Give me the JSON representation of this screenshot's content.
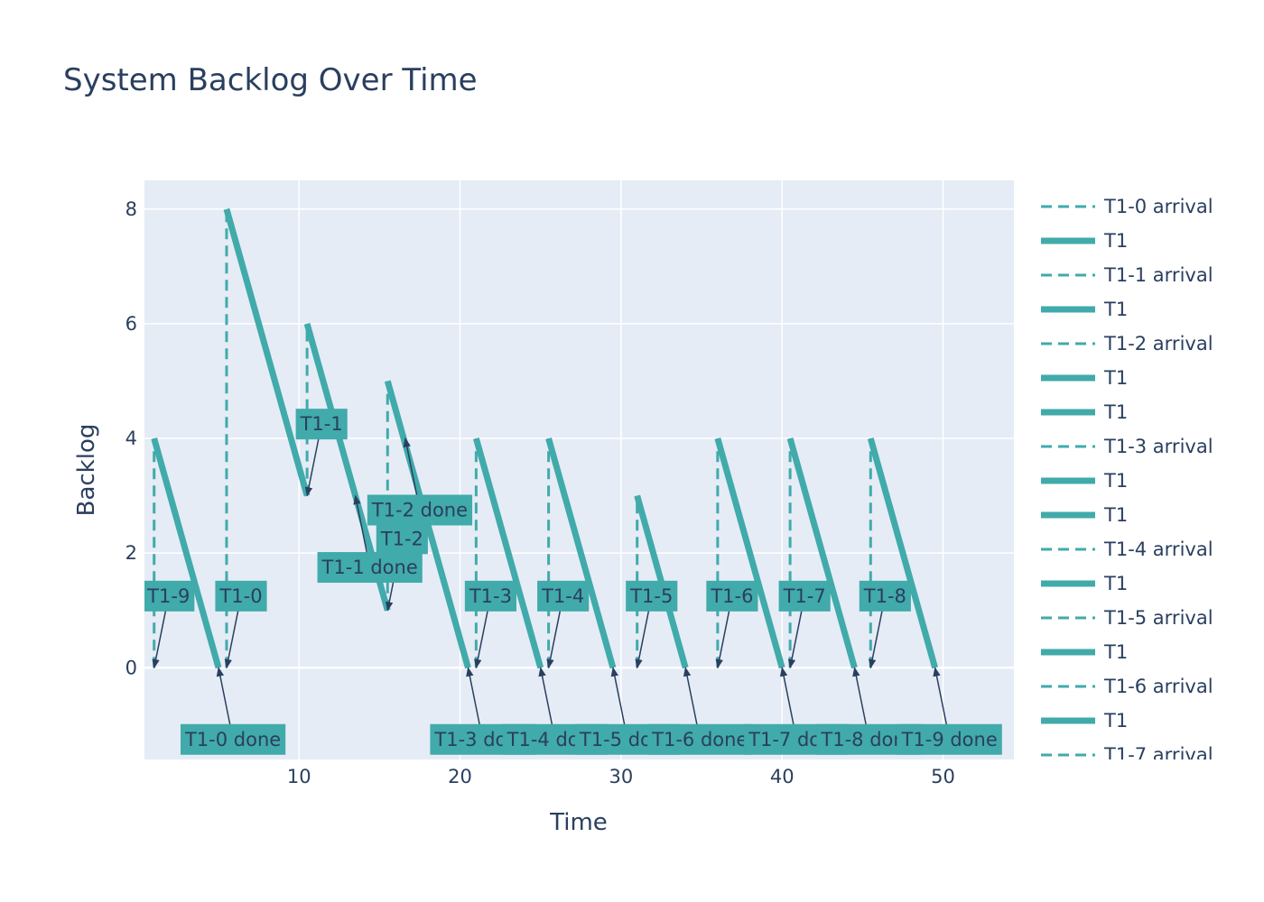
{
  "chart_data": {
    "type": "line",
    "title": "System Backlog Over Time",
    "xlabel": "Time",
    "ylabel": "Backlog",
    "xlim": [
      0.4,
      54.4
    ],
    "ylim": [
      -1.6,
      8.5
    ],
    "x_ticks": [
      10,
      20,
      30,
      40,
      50
    ],
    "y_ticks": [
      0,
      2,
      4,
      6,
      8
    ],
    "grid": true,
    "legend_position": "right",
    "colors": {
      "series": "#41aaaa",
      "plot_bg": "#e5ecf6",
      "grid": "#ffffff",
      "text": "#2a3f5f",
      "arrow": "#2a3f5f"
    },
    "series": [
      {
        "name": "T1-0 arrival",
        "style": "dash",
        "x": [
          5.5,
          5.5
        ],
        "y": [
          0,
          8
        ]
      },
      {
        "name": "T1",
        "style": "solid",
        "x": [
          5.5,
          10.5
        ],
        "y": [
          8,
          3
        ]
      },
      {
        "name": "T1-1 arrival",
        "style": "dash",
        "x": [
          10.5,
          10.5
        ],
        "y": [
          3,
          6
        ]
      },
      {
        "name": "T1",
        "style": "solid",
        "x": [
          10.5,
          15.5
        ],
        "y": [
          6,
          1
        ]
      },
      {
        "name": "T1-2 arrival",
        "style": "dash",
        "x": [
          15.5,
          15.5
        ],
        "y": [
          1,
          5
        ]
      },
      {
        "name": "T1",
        "style": "solid",
        "x": [
          15.5,
          20.5
        ],
        "y": [
          5,
          0
        ]
      },
      {
        "name": "T1",
        "style": "solid",
        "x": [
          1.0,
          5.0
        ],
        "y": [
          4,
          0
        ]
      },
      {
        "name": "T1-3 arrival",
        "style": "dash",
        "x": [
          21.0,
          21.0
        ],
        "y": [
          0,
          4
        ]
      },
      {
        "name": "T1",
        "style": "solid",
        "x": [
          21.0,
          25.0
        ],
        "y": [
          4,
          0
        ]
      },
      {
        "name": "T1",
        "style": "solid",
        "x": [
          25.5,
          29.5
        ],
        "y": [
          4,
          0
        ]
      },
      {
        "name": "T1-4 arrival",
        "style": "dash",
        "x": [
          25.5,
          25.5
        ],
        "y": [
          0,
          4
        ]
      },
      {
        "name": "T1",
        "style": "solid",
        "x": [
          31.0,
          34.0
        ],
        "y": [
          3,
          0
        ]
      },
      {
        "name": "T1-5 arrival",
        "style": "dash",
        "x": [
          31.0,
          31.0
        ],
        "y": [
          0,
          3
        ]
      },
      {
        "name": "T1",
        "style": "solid",
        "x": [
          36.0,
          40.0
        ],
        "y": [
          4,
          0
        ]
      },
      {
        "name": "T1-6 arrival",
        "style": "dash",
        "x": [
          36.0,
          36.0
        ],
        "y": [
          0,
          4
        ]
      },
      {
        "name": "T1",
        "style": "solid",
        "x": [
          40.5,
          44.5
        ],
        "y": [
          4,
          0
        ]
      },
      {
        "name": "T1-7 arrival",
        "style": "dash",
        "x": [
          40.5,
          40.5
        ],
        "y": [
          0,
          4
        ]
      },
      {
        "name": "T1",
        "style": "solid",
        "x": [
          45.5,
          49.5
        ],
        "y": [
          4,
          0
        ]
      },
      {
        "name": "",
        "style": "dash",
        "x": [
          45.5,
          45.5
        ],
        "y": [
          0,
          4
        ]
      },
      {
        "name": "",
        "style": "dash",
        "x": [
          1.0,
          1.0
        ],
        "y": [
          0,
          4
        ]
      }
    ],
    "legend_entries": [
      {
        "label": "T1-0 arrival",
        "style": "dash"
      },
      {
        "label": "T1",
        "style": "solid"
      },
      {
        "label": "T1-1 arrival",
        "style": "dash"
      },
      {
        "label": "T1",
        "style": "solid"
      },
      {
        "label": "T1-2 arrival",
        "style": "dash"
      },
      {
        "label": "T1",
        "style": "solid"
      },
      {
        "label": "T1",
        "style": "solid"
      },
      {
        "label": "T1-3 arrival",
        "style": "dash"
      },
      {
        "label": "T1",
        "style": "solid"
      },
      {
        "label": "T1",
        "style": "solid"
      },
      {
        "label": "T1-4 arrival",
        "style": "dash"
      },
      {
        "label": "T1",
        "style": "solid"
      },
      {
        "label": "T1-5 arrival",
        "style": "dash"
      },
      {
        "label": "T1",
        "style": "solid"
      },
      {
        "label": "T1-6 arrival",
        "style": "dash"
      },
      {
        "label": "T1",
        "style": "solid"
      },
      {
        "label": "T1-7 arrival",
        "style": "dash"
      }
    ],
    "annotations": [
      {
        "text": "T1-9",
        "x": 1.0,
        "y": 0,
        "ax": 1.9,
        "ay": 1.25
      },
      {
        "text": "T1-0",
        "x": 5.5,
        "y": 0,
        "ax": 6.4,
        "ay": 1.25
      },
      {
        "text": "T1-1",
        "x": 10.5,
        "y": 3,
        "ax": 11.4,
        "ay": 4.25
      },
      {
        "text": "T1-2",
        "x": 15.5,
        "y": 1,
        "ax": 16.4,
        "ay": 2.25
      },
      {
        "text": "T1-3",
        "x": 21.0,
        "y": 0,
        "ax": 21.9,
        "ay": 1.25
      },
      {
        "text": "T1-4",
        "x": 25.5,
        "y": 0,
        "ax": 26.4,
        "ay": 1.25
      },
      {
        "text": "T1-5",
        "x": 31.0,
        "y": 0,
        "ax": 31.9,
        "ay": 1.25
      },
      {
        "text": "T1-6",
        "x": 36.0,
        "y": 0,
        "ax": 36.9,
        "ay": 1.25
      },
      {
        "text": "T1-7",
        "x": 40.5,
        "y": 0,
        "ax": 41.4,
        "ay": 1.25
      },
      {
        "text": "T1-8",
        "x": 45.5,
        "y": 0,
        "ax": 46.4,
        "ay": 1.25
      },
      {
        "text": "T1-0 done",
        "x": 5.0,
        "y": 0,
        "ax": 5.9,
        "ay": -1.25
      },
      {
        "text": "T1-1 done",
        "x": 13.5,
        "y": 3,
        "ax": 14.4,
        "ay": 1.75
      },
      {
        "text": "T1-2 done",
        "x": 16.6,
        "y": 4,
        "ax": 17.5,
        "ay": 2.75
      },
      {
        "text": "T1-3 done",
        "x": 20.5,
        "y": 0,
        "ax": 21.4,
        "ay": -1.25
      },
      {
        "text": "T1-4 done",
        "x": 25.0,
        "y": 0,
        "ax": 25.9,
        "ay": -1.25
      },
      {
        "text": "T1-5 done",
        "x": 29.5,
        "y": 0,
        "ax": 30.4,
        "ay": -1.25
      },
      {
        "text": "T1-6 done",
        "x": 34.0,
        "y": 0,
        "ax": 34.9,
        "ay": -1.25
      },
      {
        "text": "T1-7 done",
        "x": 40.0,
        "y": 0,
        "ax": 40.9,
        "ay": -1.25
      },
      {
        "text": "T1-8 done",
        "x": 44.5,
        "y": 0,
        "ax": 45.4,
        "ay": -1.25
      },
      {
        "text": "T1-9 done",
        "x": 49.5,
        "y": 0,
        "ax": 50.4,
        "ay": -1.25
      }
    ]
  }
}
